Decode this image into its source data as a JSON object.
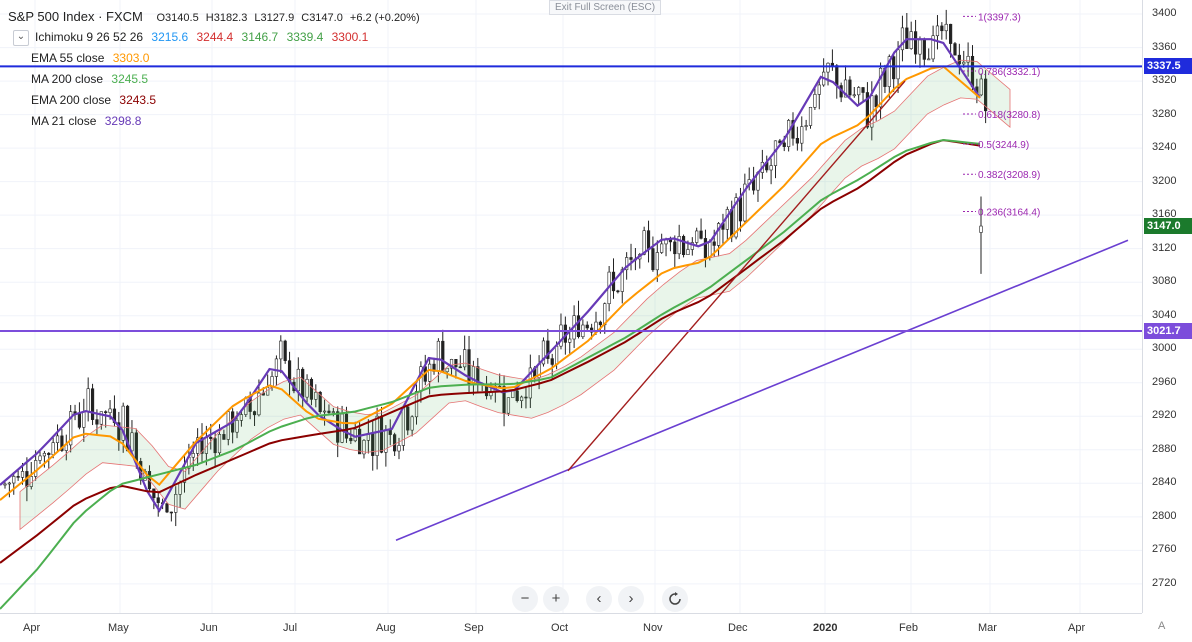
{
  "header": {
    "title": "S&P 500 Index · FXCM",
    "open": "O3140.5",
    "high": "H3182.3",
    "low": "L3127.9",
    "close": "C3147.0",
    "change": "+6.2 (+0.20%)",
    "exit_fullscreen": "Exit Full Screen (ESC)"
  },
  "indicators": {
    "ichimoku": {
      "label": "Ichimoku 9 26 52 26",
      "v1": "3215.6",
      "v2": "3244.4",
      "v3": "3146.7",
      "v4": "3339.4",
      "v5": "3300.1"
    },
    "ema55": {
      "label": "EMA 55 close",
      "value": "3303.0"
    },
    "ma200": {
      "label": "MA 200 close",
      "value": "3245.5"
    },
    "ema200": {
      "label": "EMA 200 close",
      "value": "3243.5"
    },
    "ma21": {
      "label": "MA 21 close",
      "value": "3298.8"
    }
  },
  "colors": {
    "ichimoku_v1": "#2196f3",
    "ichimoku_v2": "#d32f2f",
    "ichimoku_v3": "#43a047",
    "ichimoku_v4": "#43a047",
    "ichimoku_v5": "#d32f2f",
    "ema55": "#ff9800",
    "ma200": "#4caf50",
    "ema200": "#8b0000",
    "ma21": "#673ab7",
    "horizontal_blue": "#1f2bdc",
    "horizontal_purple": "#7c4ddb",
    "trendline": "#6a3fd1",
    "inner_trendline": "#a31e1e",
    "fib": "#9c27b0"
  },
  "navigation": {
    "zoom_out": "−",
    "zoom_in": "+",
    "prev": "‹",
    "next": "›",
    "reset": "reset-icon"
  },
  "corner_label": "A",
  "chart_data": {
    "type": "candlestick",
    "title": "S&P 500 Index · FXCM",
    "ylim": [
      2690,
      3412
    ],
    "y_ticks": [
      2720,
      2760,
      2800,
      2840,
      2880,
      2920,
      2960,
      3000,
      3040,
      3080,
      3120,
      3160,
      3200,
      3240,
      3280,
      3320,
      3360,
      3400
    ],
    "x_labels": [
      "Apr",
      "May",
      "Jun",
      "Jul",
      "Aug",
      "Sep",
      "Oct",
      "Nov",
      "Dec",
      "2020",
      "Feb",
      "Mar",
      "Apr"
    ],
    "price_tags": [
      {
        "value": 3337.5,
        "label": "3337.5",
        "color": "#1f2bdc"
      },
      {
        "value": 3147.0,
        "label": "3147.0",
        "color": "#1b7a2c"
      },
      {
        "value": 3021.7,
        "label": "3021.7",
        "color": "#7c4ddb"
      }
    ],
    "horizontal_lines": [
      {
        "value": 3337.5,
        "color": "#1f2bdc"
      },
      {
        "value": 3021.7,
        "color": "#7c4ddb"
      }
    ],
    "fibonacci": [
      {
        "level": "1",
        "value": 3397.3,
        "label": "1(3397.3)"
      },
      {
        "level": "0.786",
        "value": 3332.1,
        "label": "0.786(3332.1)"
      },
      {
        "level": "0.618",
        "value": 3280.8,
        "label": "0.618(3280.8)"
      },
      {
        "level": "0.5",
        "value": 3244.9,
        "label": "0.5(3244.9)"
      },
      {
        "level": "0.382",
        "value": 3208.9,
        "label": "0.382(3208.9)"
      },
      {
        "level": "0.236",
        "value": 3164.4,
        "label": "0.236(3164.4)"
      }
    ],
    "series": [
      {
        "name": "MA 21 close",
        "color": "#673ab7",
        "values": [
          2838,
          2878,
          2928,
          2918,
          2802,
          2888,
          2915,
          2985,
          2925,
          2895,
          2905,
          2995,
          2965,
          2945,
          2995,
          3045,
          3100,
          3135,
          3120,
          3190,
          3250,
          3330,
          3285,
          3370,
          3370,
          3300
        ]
      },
      {
        "name": "EMA 55 close",
        "color": "#ff9800",
        "values": [
          2820,
          2858,
          2900,
          2895,
          2835,
          2890,
          2935,
          2960,
          2918,
          2910,
          2935,
          2978,
          2960,
          2952,
          2975,
          3010,
          3058,
          3095,
          3105,
          3150,
          3195,
          3248,
          3270,
          3320,
          3340,
          3300
        ]
      },
      {
        "name": "EMA 200 close",
        "color": "#8b0000",
        "values": [
          2745,
          2780,
          2818,
          2838,
          2828,
          2850,
          2870,
          2890,
          2898,
          2905,
          2925,
          2945,
          2948,
          2950,
          2962,
          2985,
          3010,
          3040,
          3060,
          3095,
          3130,
          3170,
          3195,
          3230,
          3250,
          3243
        ]
      },
      {
        "name": "MA 200 close",
        "color": "#4caf50",
        "values": [
          2690,
          2740,
          2800,
          2838,
          2850,
          2862,
          2880,
          2905,
          2920,
          2925,
          2937,
          2955,
          2958,
          2958,
          2965,
          2990,
          3015,
          3045,
          3070,
          3105,
          3140,
          3180,
          3205,
          3235,
          3250,
          3245
        ]
      }
    ],
    "trendlines": [
      {
        "name": "lower-trendline",
        "from": {
          "x": "early Aug",
          "y": 2772
        },
        "to": {
          "x": "late Mar",
          "y": 3130
        }
      },
      {
        "name": "inner-trendline",
        "from": {
          "x": "early Oct",
          "y": 2855
        },
        "to": {
          "x": "late Jan",
          "y": 3320
        }
      }
    ],
    "last_close": 3147.0
  }
}
